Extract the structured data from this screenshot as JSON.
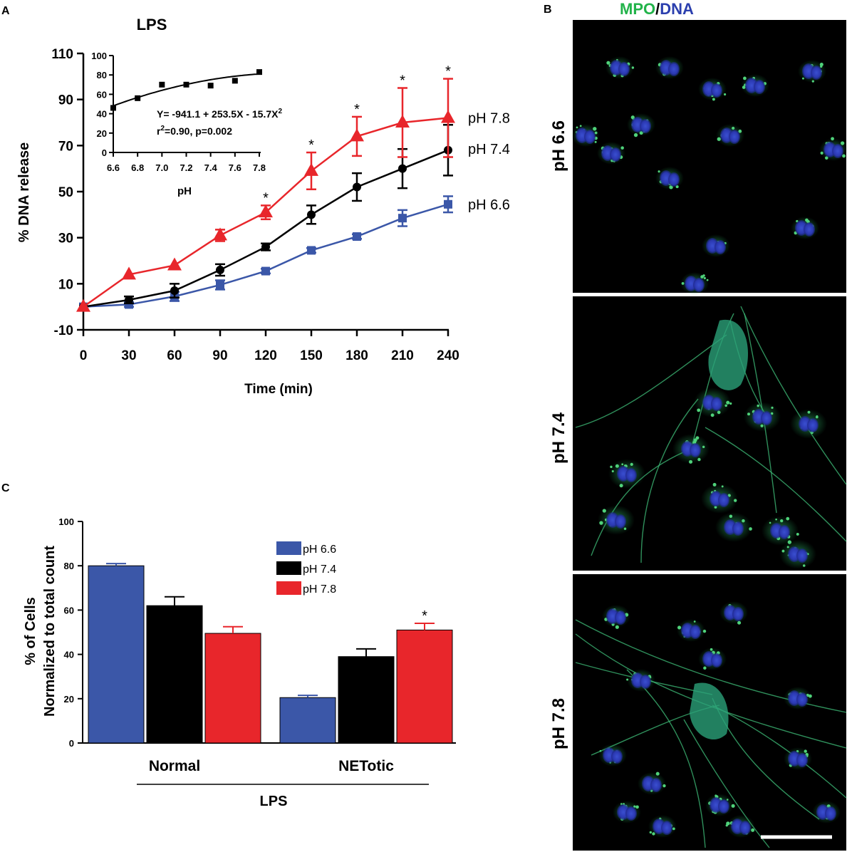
{
  "panels": {
    "a": "A",
    "b": "B",
    "c": "C"
  },
  "colors": {
    "ph66": "#3b57a8",
    "ph74": "#000000",
    "ph78": "#e8262b",
    "mpo": "#22b34a",
    "dna": "#2b3fae"
  },
  "chart_data": [
    {
      "id": "A",
      "type": "line",
      "title": "LPS",
      "xlabel": "Time (min)",
      "ylabel": "% DNA release",
      "x": [
        0,
        30,
        60,
        90,
        120,
        150,
        180,
        210,
        240
      ],
      "xlim": [
        0,
        240
      ],
      "ylim": [
        -10,
        110
      ],
      "yticks": [
        -10,
        10,
        30,
        50,
        70,
        90,
        110
      ],
      "series": [
        {
          "name": "pH 7.8",
          "marker": "triangle",
          "color": "#e8262b",
          "values": [
            0,
            14,
            18,
            31,
            41,
            59,
            74,
            80,
            82
          ],
          "errors": [
            0,
            0,
            0,
            2.5,
            3,
            8,
            8.5,
            15,
            17
          ]
        },
        {
          "name": "pH 7.4",
          "marker": "circle",
          "color": "#000000",
          "values": [
            0,
            3,
            7,
            16,
            26,
            40,
            52,
            60,
            68
          ],
          "errors": [
            0,
            1.5,
            3,
            2.5,
            1.5,
            4,
            6,
            8.5,
            11
          ]
        },
        {
          "name": "pH 6.6",
          "marker": "square",
          "color": "#3b57a8",
          "values": [
            0,
            1,
            4.5,
            9.5,
            15.5,
            24.5,
            30.5,
            38.5,
            44.5
          ],
          "errors": [
            0,
            1,
            2,
            2,
            1,
            1,
            1,
            3.5,
            3.5
          ]
        }
      ],
      "significance": [
        {
          "x": 120,
          "label": "*"
        },
        {
          "x": 150,
          "label": "*"
        },
        {
          "x": 180,
          "label": "*"
        },
        {
          "x": 210,
          "label": "*"
        },
        {
          "x": 240,
          "label": "*"
        }
      ]
    },
    {
      "id": "A-inset",
      "type": "scatter",
      "xlabel": "pH",
      "xticks": [
        "6.6",
        "6.8",
        "7.0",
        "7.2",
        "7.4",
        "7.6",
        "7.8"
      ],
      "xlim": [
        6.6,
        7.8
      ],
      "ylim": [
        0,
        100
      ],
      "yticks": [
        0,
        20,
        40,
        60,
        80,
        100
      ],
      "points": [
        [
          6.6,
          46
        ],
        [
          6.8,
          56
        ],
        [
          7.0,
          70
        ],
        [
          7.2,
          70
        ],
        [
          7.4,
          69
        ],
        [
          7.6,
          74
        ],
        [
          7.8,
          83
        ]
      ],
      "fit": {
        "a": -941.1,
        "b": 253.5,
        "c": -15.7
      },
      "equation_label": "Y= -941.1 + 253.5X - 15.7X",
      "equation_sup": "2",
      "stats_prefix": "r",
      "stats_sup": "2",
      "stats_label": "=0.90, p=0.002"
    },
    {
      "id": "C",
      "type": "bar",
      "ylabel_line1": "% of Cells",
      "ylabel_line2": "Normalized to total count",
      "categories": [
        "Normal",
        "NETotic"
      ],
      "group_label": "LPS",
      "ylim": [
        0,
        100
      ],
      "yticks": [
        0,
        20,
        40,
        60,
        80,
        100
      ],
      "series": [
        {
          "name": "pH 6.6",
          "color": "#3b57a8",
          "values": [
            80,
            20.5
          ],
          "errors": [
            1,
            1
          ]
        },
        {
          "name": "pH 7.4",
          "color": "#000000",
          "values": [
            62,
            39
          ],
          "errors": [
            4,
            3.5
          ]
        },
        {
          "name": "pH 7.8",
          "color": "#e8262b",
          "values": [
            49.5,
            51
          ],
          "errors": [
            3,
            3
          ]
        }
      ],
      "legend": {
        "position": "top-center"
      },
      "significance": [
        {
          "category": "NETotic",
          "series": "pH 7.8",
          "label": "*"
        }
      ]
    }
  ],
  "micrographs": {
    "header_mpo": "MPO",
    "header_slash": "/",
    "header_dna": "DNA",
    "rows": [
      {
        "label": "pH 6.6"
      },
      {
        "label": "pH 7.4"
      },
      {
        "label": "pH 7.8"
      }
    ]
  }
}
